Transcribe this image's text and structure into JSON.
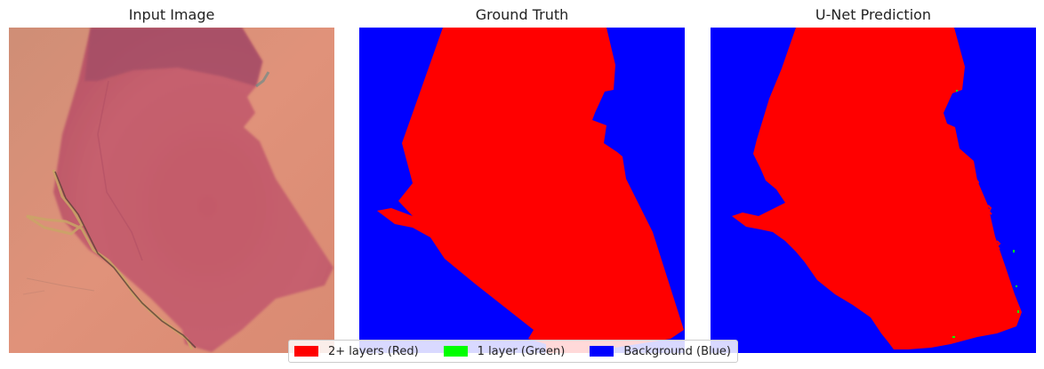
{
  "panels": [
    {
      "title": "Input Image"
    },
    {
      "title": "Ground Truth"
    },
    {
      "title": "U-Net Prediction"
    }
  ],
  "legend": {
    "items": [
      {
        "label": "2+ layers (Red)",
        "color": "#ff0000"
      },
      {
        "label": "1 layer (Green)",
        "color": "#00ff00"
      },
      {
        "label": "Background (Blue)",
        "color": "#0000ff"
      }
    ]
  },
  "colors": {
    "substrate": "#e2927a",
    "flake": "#c45e6c",
    "thick_flake": "#a64e68",
    "edge_debris": "#b89a5a",
    "mask_red": "#ff0000",
    "mask_green": "#00ff00",
    "mask_blue": "#0000ff"
  }
}
